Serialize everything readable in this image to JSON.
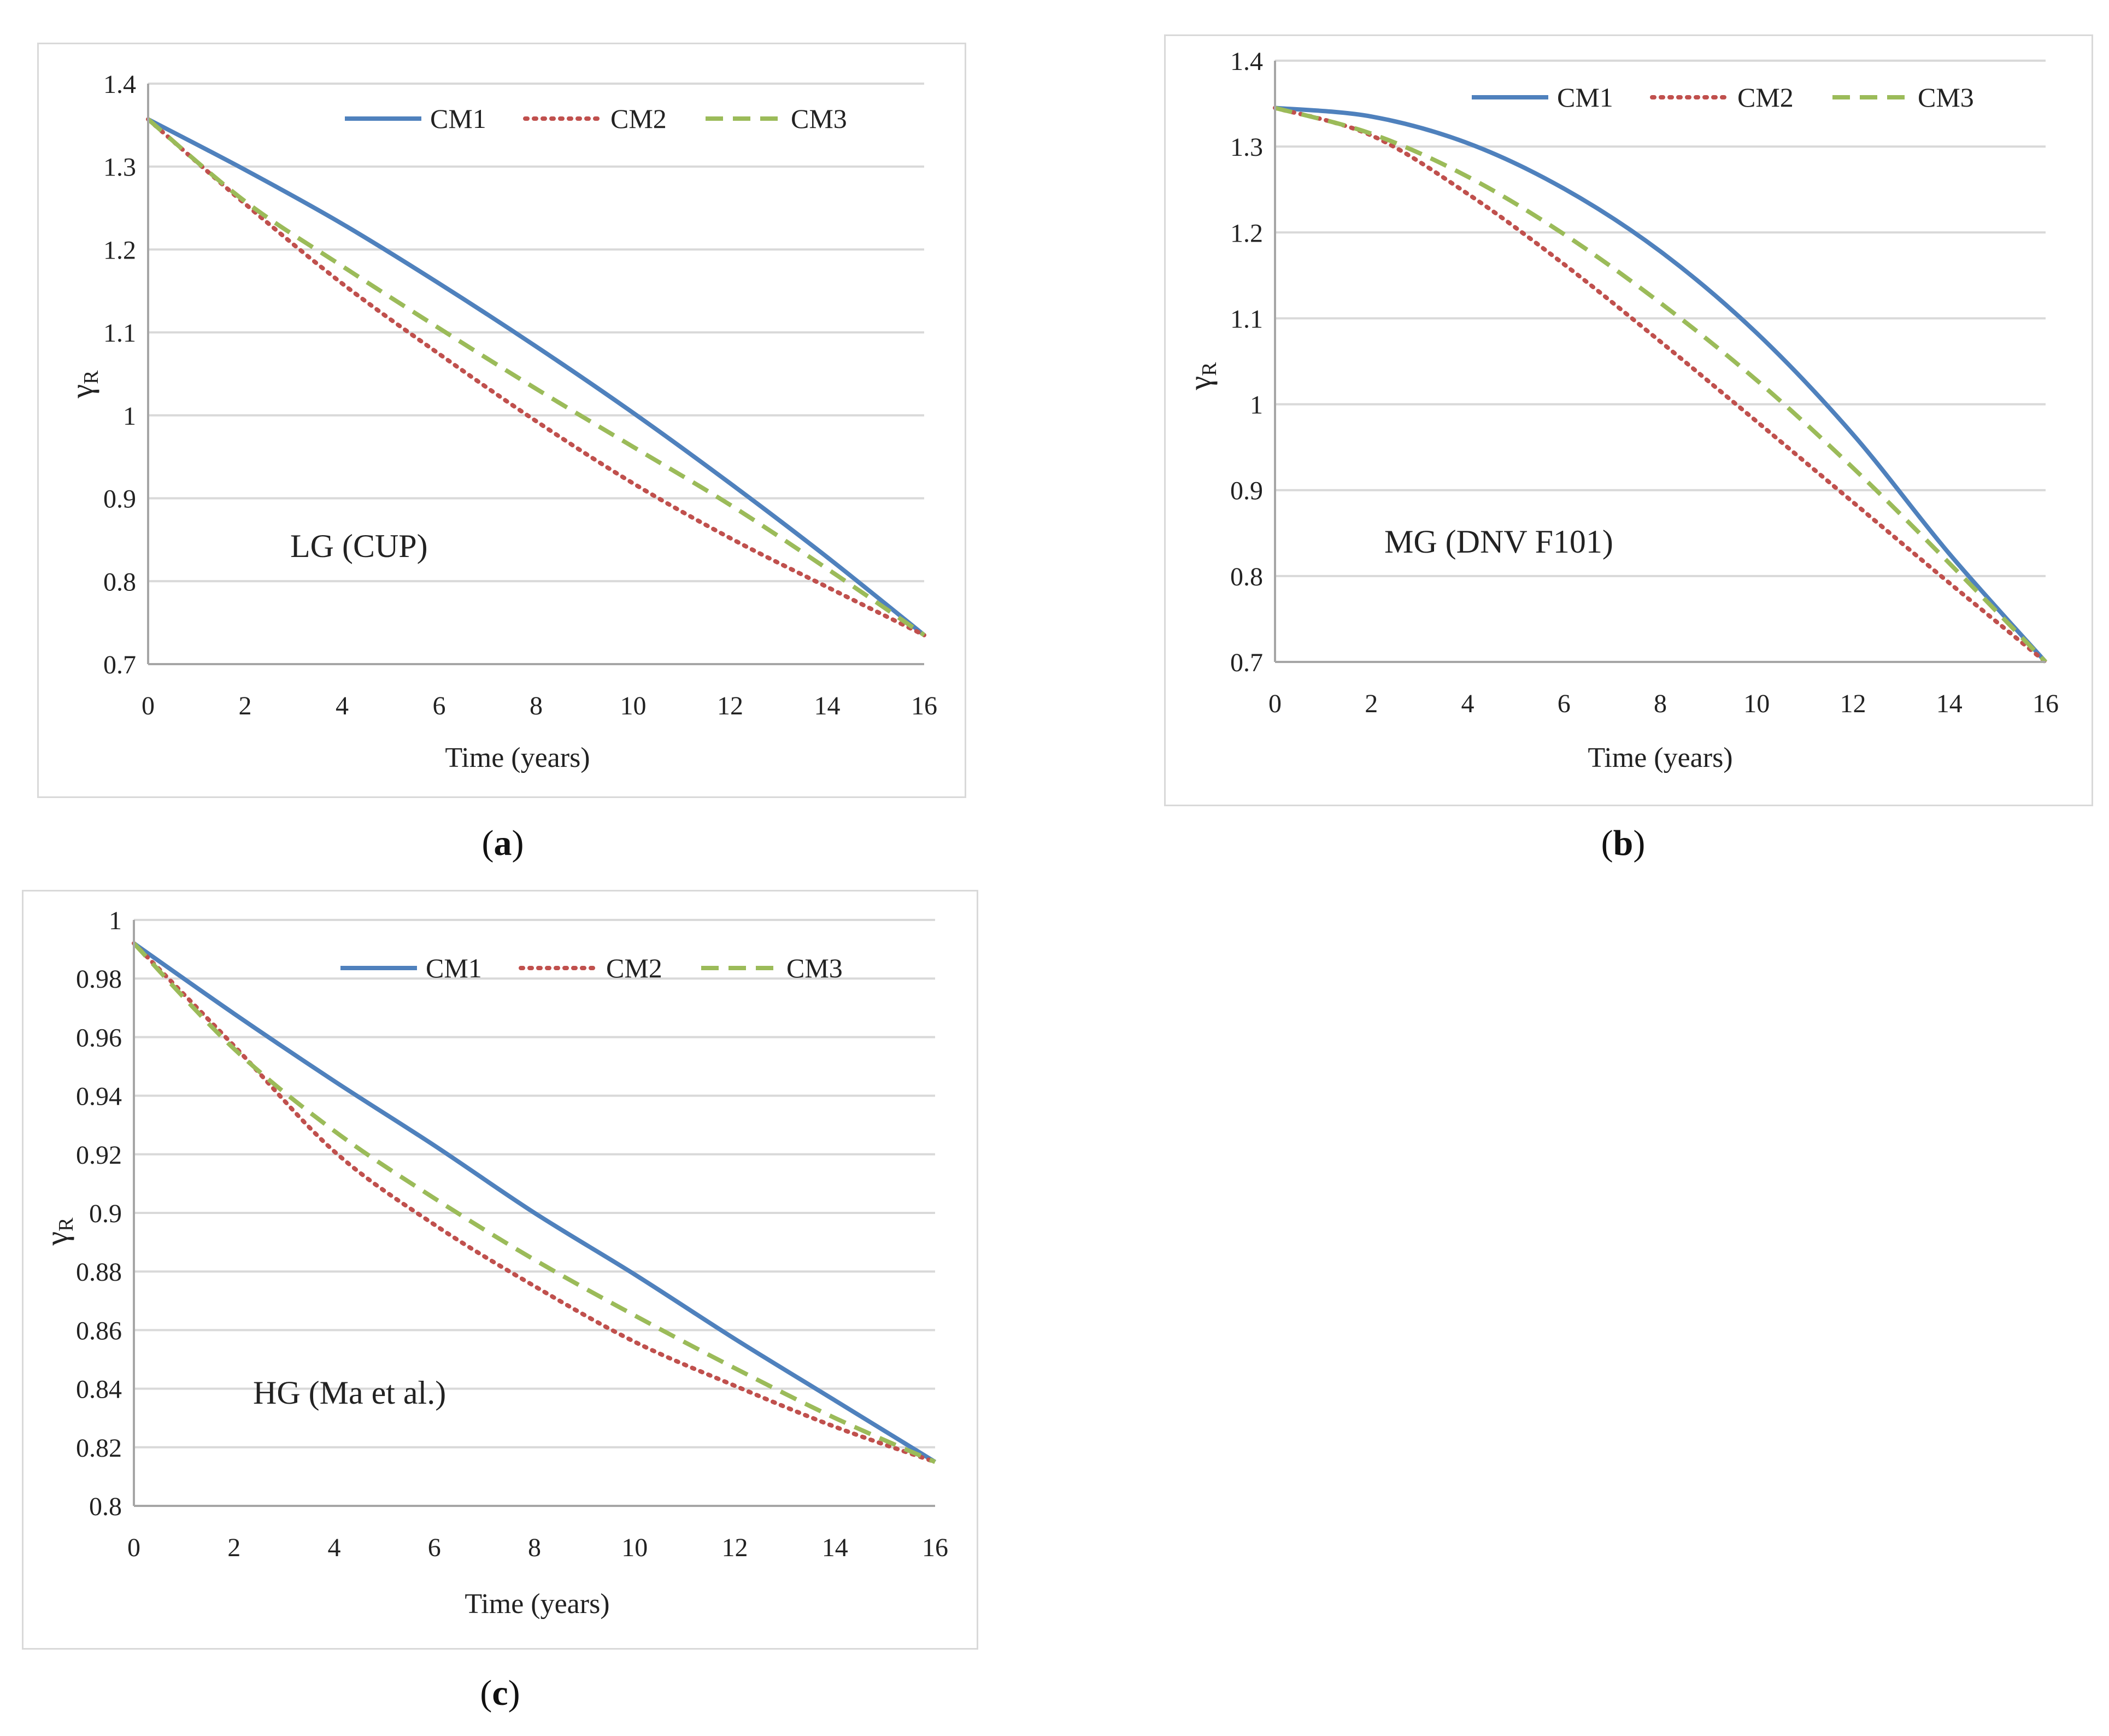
{
  "colors": {
    "CM1": "#4f81bd",
    "CM2": "#c0504d",
    "CM3": "#9bbb59",
    "grid": "#d9d9d9",
    "axis": "#a6a6a6"
  },
  "panels": [
    {
      "id": "a",
      "caption": "a",
      "chart_data": {
        "type": "line",
        "title": "",
        "annotation": "LG (CUP)",
        "xlabel": "Time (years)",
        "ylabel": "γ",
        "ylabel_sub": "R",
        "xlim": [
          0,
          16
        ],
        "ylim": [
          0.7,
          1.4
        ],
        "xticks": [
          0,
          2,
          4,
          6,
          8,
          10,
          12,
          14,
          16
        ],
        "yticks": [
          0.7,
          0.8,
          0.9,
          1,
          1.1,
          1.2,
          1.3,
          1.4
        ],
        "ytick_labels": [
          "0.7",
          "0.8",
          "0.9",
          "1",
          "1.1",
          "1.2",
          "1.3",
          "1.4"
        ],
        "x": [
          0,
          2,
          4,
          6,
          8,
          10,
          12,
          14,
          16
        ],
        "series": [
          {
            "name": "CM1",
            "values": [
              1.357,
              1.296,
              1.231,
              1.159,
              1.083,
              1.003,
              0.918,
              0.829,
              0.735
            ]
          },
          {
            "name": "CM2",
            "values": [
              1.357,
              1.255,
              1.159,
              1.074,
              0.993,
              0.918,
              0.852,
              0.793,
              0.735
            ]
          },
          {
            "name": "CM3",
            "values": [
              1.357,
              1.258,
              1.18,
              1.105,
              1.032,
              0.962,
              0.892,
              0.815,
              0.735
            ]
          }
        ]
      }
    },
    {
      "id": "b",
      "caption": "b",
      "chart_data": {
        "type": "line",
        "title": "",
        "annotation": "MG (DNV F101)",
        "xlabel": "Time (years)",
        "ylabel": "γ",
        "ylabel_sub": "R",
        "xlim": [
          0,
          16
        ],
        "ylim": [
          0.7,
          1.4
        ],
        "xticks": [
          0,
          2,
          4,
          6,
          8,
          10,
          12,
          14,
          16
        ],
        "yticks": [
          0.7,
          0.8,
          0.9,
          1,
          1.1,
          1.2,
          1.3,
          1.4
        ],
        "ytick_labels": [
          "0.7",
          "0.8",
          "0.9",
          "1",
          "1.1",
          "1.2",
          "1.3",
          "1.4"
        ],
        "x": [
          0,
          2,
          4,
          6,
          8,
          10,
          12,
          14,
          16
        ],
        "series": [
          {
            "name": "CM1",
            "values": [
              1.345,
              1.335,
              1.304,
              1.251,
              1.178,
              1.083,
              0.965,
              0.826,
              0.7
            ]
          },
          {
            "name": "CM2",
            "values": [
              1.345,
              1.313,
              1.245,
              1.163,
              1.073,
              0.98,
              0.886,
              0.792,
              0.7
            ]
          },
          {
            "name": "CM3",
            "values": [
              1.345,
              1.315,
              1.265,
              1.198,
              1.118,
              1.028,
              0.926,
              0.815,
              0.7
            ]
          }
        ]
      }
    },
    {
      "id": "c",
      "caption": "c",
      "chart_data": {
        "type": "line",
        "title": "",
        "annotation": "HG (Ma et al.)",
        "xlabel": "Time (years)",
        "ylabel": "γ",
        "ylabel_sub": "R",
        "xlim": [
          0,
          16
        ],
        "ylim": [
          0.8,
          1.0
        ],
        "xticks": [
          0,
          2,
          4,
          6,
          8,
          10,
          12,
          14,
          16
        ],
        "yticks": [
          0.8,
          0.82,
          0.84,
          0.86,
          0.88,
          0.9,
          0.92,
          0.94,
          0.96,
          0.98,
          1
        ],
        "ytick_labels": [
          "0.8",
          "0.82",
          "0.84",
          "0.86",
          "0.88",
          "0.9",
          "0.92",
          "0.94",
          "0.96",
          "0.98",
          "1"
        ],
        "x": [
          0,
          2,
          4,
          6,
          8,
          10,
          12,
          14,
          16
        ],
        "series": [
          {
            "name": "CM1",
            "values": [
              0.992,
              0.968,
              0.945,
              0.923,
              0.9,
              0.879,
              0.857,
              0.836,
              0.815
            ]
          },
          {
            "name": "CM2",
            "values": [
              0.992,
              0.957,
              0.921,
              0.896,
              0.875,
              0.856,
              0.841,
              0.827,
              0.815
            ]
          },
          {
            "name": "CM3",
            "values": [
              0.992,
              0.956,
              0.928,
              0.905,
              0.884,
              0.865,
              0.847,
              0.83,
              0.815
            ]
          }
        ]
      }
    }
  ]
}
